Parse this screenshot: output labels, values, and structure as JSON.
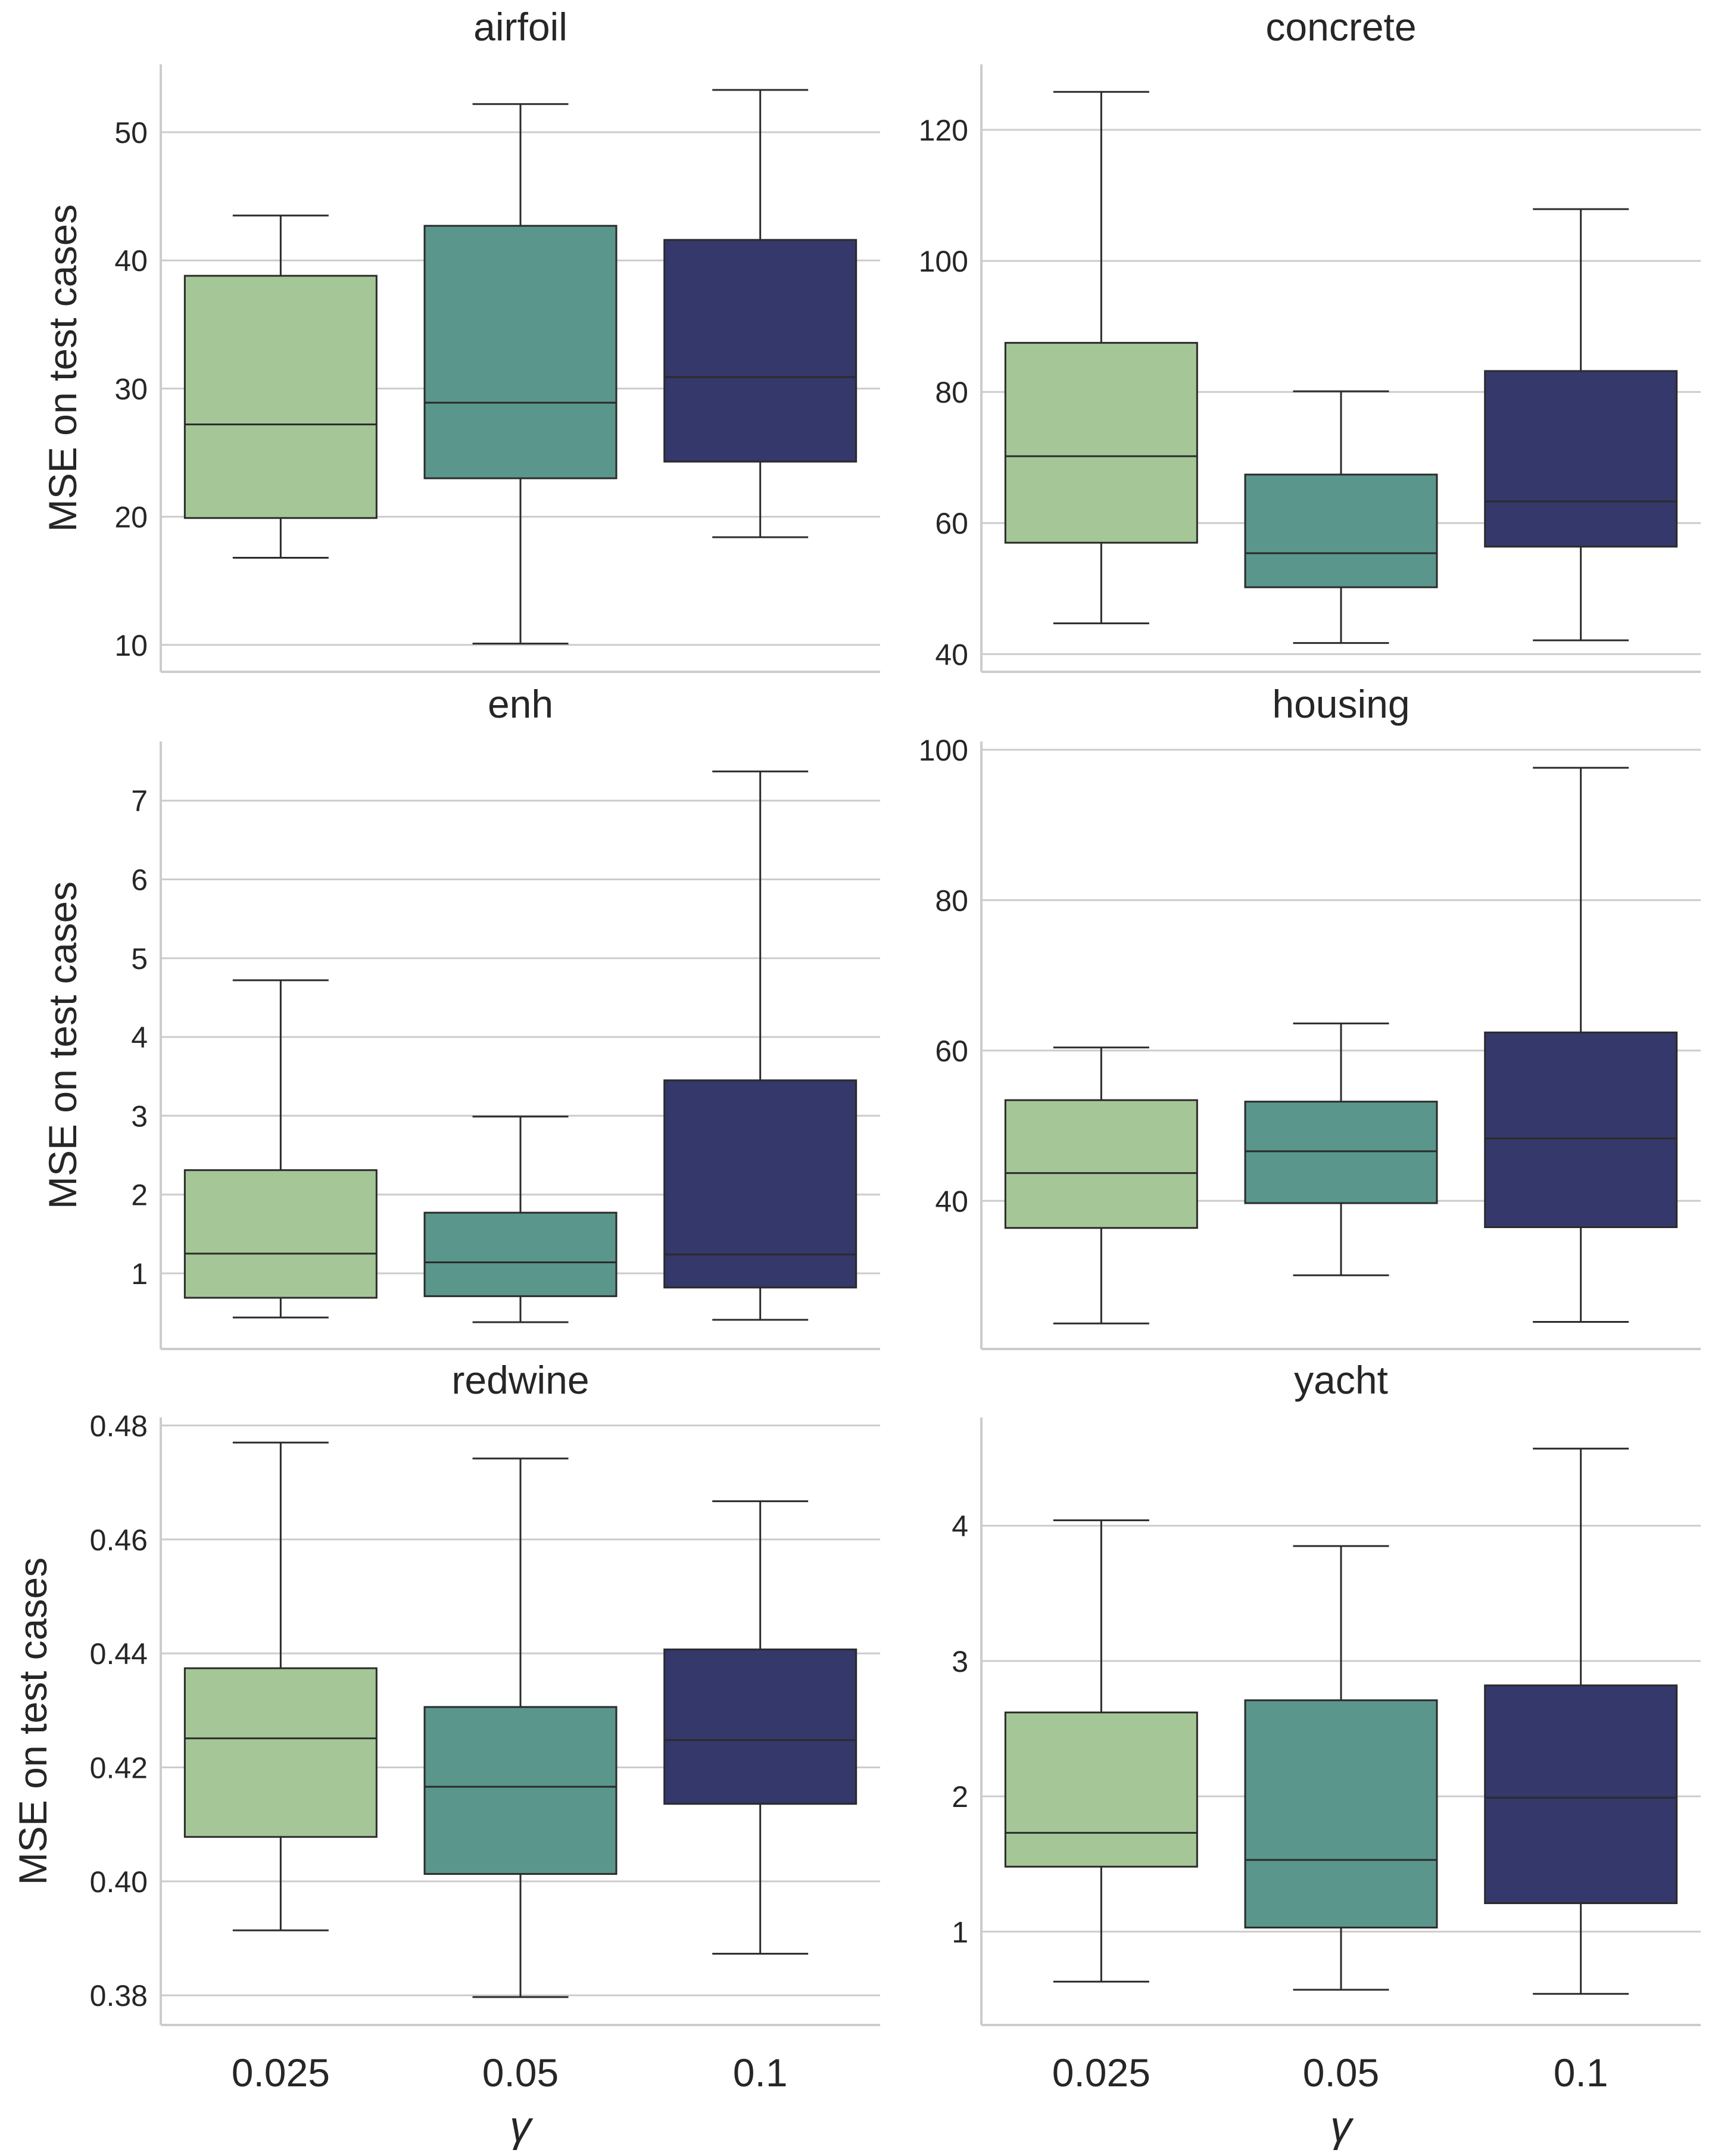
{
  "chart_data": {
    "type": "box",
    "categories": [
      "0.025",
      "0.05",
      "0.1"
    ],
    "xlabel": "γ",
    "ylabel": "MSE on test cases",
    "colors": [
      "#a5c697",
      "#5a968b",
      "#35386a"
    ],
    "panels": [
      {
        "title": "airfoil",
        "ylim": [
          7.9,
          55.3
        ],
        "yticks": [
          10,
          20,
          30,
          40,
          50
        ],
        "ytick_labels": [
          "10",
          "20",
          "30",
          "40",
          "50"
        ],
        "boxes": [
          {
            "whisker_low": 16.8,
            "q1": 19.9,
            "median": 27.2,
            "q3": 38.8,
            "whisker_high": 43.5
          },
          {
            "whisker_low": 10.1,
            "q1": 23.0,
            "median": 28.9,
            "q3": 42.7,
            "whisker_high": 52.2
          },
          {
            "whisker_low": 18.4,
            "q1": 24.3,
            "median": 30.9,
            "q3": 41.6,
            "whisker_high": 53.3
          }
        ]
      },
      {
        "title": "concrete",
        "ylim": [
          37.3,
          130.0
        ],
        "yticks": [
          40,
          60,
          80,
          100,
          120
        ],
        "ytick_labels": [
          "40",
          "60",
          "80",
          "100",
          "120"
        ],
        "boxes": [
          {
            "whisker_low": 44.7,
            "q1": 57.0,
            "median": 70.2,
            "q3": 87.5,
            "whisker_high": 125.8
          },
          {
            "whisker_low": 41.7,
            "q1": 50.2,
            "median": 55.4,
            "q3": 67.4,
            "whisker_high": 80.1
          },
          {
            "whisker_low": 42.1,
            "q1": 56.4,
            "median": 63.3,
            "q3": 83.2,
            "whisker_high": 107.9
          }
        ]
      },
      {
        "title": "enh",
        "ylim": [
          0.04,
          7.75
        ],
        "yticks": [
          1,
          2,
          3,
          4,
          5,
          6,
          7
        ],
        "ytick_labels": [
          "1",
          "2",
          "3",
          "4",
          "5",
          "6",
          "7"
        ],
        "boxes": [
          {
            "whisker_low": 0.44,
            "q1": 0.69,
            "median": 1.25,
            "q3": 2.31,
            "whisker_high": 4.72
          },
          {
            "whisker_low": 0.38,
            "q1": 0.71,
            "median": 1.14,
            "q3": 1.77,
            "whisker_high": 2.99
          },
          {
            "whisker_low": 0.41,
            "q1": 0.82,
            "median": 1.24,
            "q3": 3.45,
            "whisker_high": 7.37
          }
        ]
      },
      {
        "title": "housing",
        "ylim": [
          20.3,
          101.1
        ],
        "yticks": [
          40,
          60,
          80,
          100
        ],
        "ytick_labels": [
          "40",
          "60",
          "80",
          "100"
        ],
        "boxes": [
          {
            "whisker_low": 23.7,
            "q1": 36.4,
            "median": 43.7,
            "q3": 53.4,
            "whisker_high": 60.4
          },
          {
            "whisker_low": 30.1,
            "q1": 39.7,
            "median": 46.6,
            "q3": 53.2,
            "whisker_high": 63.6
          },
          {
            "whisker_low": 23.9,
            "q1": 36.5,
            "median": 48.3,
            "q3": 62.4,
            "whisker_high": 97.6
          }
        ]
      },
      {
        "title": "redwine",
        "ylim": [
          0.3748,
          0.4814
        ],
        "yticks": [
          0.38,
          0.4,
          0.42,
          0.44,
          0.46,
          0.48
        ],
        "ytick_labels": [
          "0.38",
          "0.40",
          "0.42",
          "0.44",
          "0.46",
          "0.48"
        ],
        "boxes": [
          {
            "whisker_low": 0.3914,
            "q1": 0.4078,
            "median": 0.4251,
            "q3": 0.4374,
            "whisker_high": 0.477
          },
          {
            "whisker_low": 0.3797,
            "q1": 0.4013,
            "median": 0.4166,
            "q3": 0.4306,
            "whisker_high": 0.4742
          },
          {
            "whisker_low": 0.3873,
            "q1": 0.4136,
            "median": 0.4248,
            "q3": 0.4407,
            "whisker_high": 0.4667
          }
        ]
      },
      {
        "title": "yacht",
        "ylim": [
          0.31,
          4.8
        ],
        "yticks": [
          1,
          2,
          3,
          4
        ],
        "ytick_labels": [
          "1",
          "2",
          "3",
          "4"
        ],
        "boxes": [
          {
            "whisker_low": 0.63,
            "q1": 1.48,
            "median": 1.73,
            "q3": 2.62,
            "whisker_high": 4.04
          },
          {
            "whisker_low": 0.57,
            "q1": 1.03,
            "median": 1.53,
            "q3": 2.71,
            "whisker_high": 3.85
          },
          {
            "whisker_low": 0.54,
            "q1": 1.21,
            "median": 1.99,
            "q3": 2.82,
            "whisker_high": 4.57
          }
        ]
      }
    ]
  }
}
